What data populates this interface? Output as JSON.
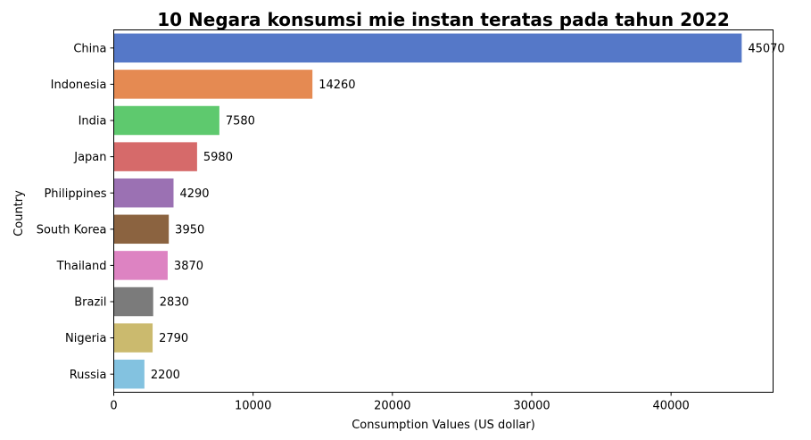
{
  "chart_data": {
    "type": "bar",
    "orientation": "horizontal",
    "title": "10 Negara konsumsi mie instan teratas pada tahun 2022",
    "xlabel": "Consumption Values (US dollar)",
    "ylabel": "Country",
    "categories": [
      "China",
      "Indonesia",
      "India",
      "Japan",
      "Philippines",
      "South Korea",
      "Thailand",
      "Brazil",
      "Nigeria",
      "Russia"
    ],
    "values": [
      45070,
      14260,
      7580,
      5980,
      4290,
      3950,
      3870,
      2830,
      2790,
      2200
    ],
    "data_labels": [
      "45070",
      "14260",
      "7580",
      "5980",
      "4290",
      "3950",
      "3870",
      "2830",
      "2790",
      "2200"
    ],
    "colors": [
      "#5578c8",
      "#e58a52",
      "#5ec96e",
      "#d66a6a",
      "#9b71b3",
      "#8b6340",
      "#dd83c2",
      "#7b7b7b",
      "#cbba6e",
      "#83c2e0"
    ],
    "xticks": [
      0,
      10000,
      20000,
      30000,
      40000
    ],
    "xtick_labels": [
      "0",
      "10000",
      "20000",
      "30000",
      "40000"
    ],
    "xlim": [
      0,
      47322
    ],
    "grid": false,
    "legend": "none"
  }
}
